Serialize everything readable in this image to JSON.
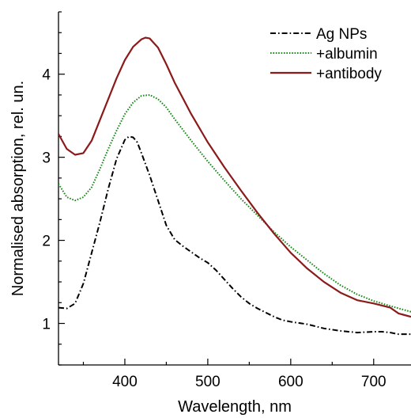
{
  "chart_data": {
    "type": "line",
    "title": "",
    "xlabel": "Wavelength, nm",
    "ylabel": "Normalised absorption, rel. un.",
    "xlim": [
      320,
      745
    ],
    "ylim": [
      0.5,
      4.75
    ],
    "x_ticks": [
      400,
      500,
      600,
      700
    ],
    "y_ticks": [
      1,
      2,
      3,
      4
    ],
    "grid": false,
    "legend_position": "top-right",
    "series": [
      {
        "name": "Ag NPs",
        "color": "#000000",
        "dash": "dashdot",
        "x": [
          320,
          330,
          340,
          350,
          360,
          370,
          380,
          390,
          400,
          405,
          410,
          415,
          420,
          430,
          440,
          450,
          460,
          470,
          480,
          490,
          500,
          510,
          520,
          530,
          540,
          550,
          560,
          570,
          580,
          590,
          600,
          620,
          640,
          660,
          680,
          700,
          710,
          720,
          730,
          745
        ],
        "y": [
          1.19,
          1.18,
          1.24,
          1.48,
          1.85,
          2.22,
          2.62,
          2.98,
          3.21,
          3.25,
          3.24,
          3.18,
          3.05,
          2.78,
          2.48,
          2.18,
          2.01,
          1.93,
          1.86,
          1.79,
          1.73,
          1.64,
          1.53,
          1.42,
          1.32,
          1.24,
          1.18,
          1.13,
          1.08,
          1.04,
          1.02,
          0.99,
          0.94,
          0.91,
          0.89,
          0.9,
          0.9,
          0.89,
          0.87,
          0.87
        ]
      },
      {
        "name": "+albumin",
        "color": "#1a8a1a",
        "dash": "dotted",
        "x": [
          320,
          330,
          340,
          350,
          360,
          370,
          380,
          390,
          400,
          410,
          420,
          430,
          440,
          450,
          460,
          480,
          500,
          520,
          540,
          560,
          580,
          600,
          620,
          640,
          660,
          680,
          700,
          720,
          745
        ],
        "y": [
          2.68,
          2.52,
          2.48,
          2.52,
          2.64,
          2.86,
          3.1,
          3.32,
          3.52,
          3.66,
          3.74,
          3.75,
          3.7,
          3.6,
          3.46,
          3.2,
          2.95,
          2.72,
          2.5,
          2.3,
          2.1,
          1.92,
          1.76,
          1.6,
          1.46,
          1.35,
          1.27,
          1.21,
          1.14
        ]
      },
      {
        "name": "+antibody",
        "color": "#8b1a1a",
        "dash": "solid",
        "x": [
          320,
          330,
          340,
          350,
          360,
          370,
          380,
          390,
          400,
          410,
          420,
          425,
          430,
          440,
          450,
          460,
          480,
          500,
          520,
          540,
          560,
          580,
          600,
          620,
          640,
          660,
          680,
          700,
          720,
          730,
          745
        ],
        "y": [
          3.28,
          3.1,
          3.03,
          3.05,
          3.2,
          3.45,
          3.7,
          3.95,
          4.17,
          4.33,
          4.42,
          4.44,
          4.43,
          4.32,
          4.12,
          3.9,
          3.52,
          3.18,
          2.88,
          2.6,
          2.33,
          2.08,
          1.85,
          1.66,
          1.5,
          1.37,
          1.28,
          1.24,
          1.19,
          1.12,
          1.08
        ]
      }
    ]
  }
}
